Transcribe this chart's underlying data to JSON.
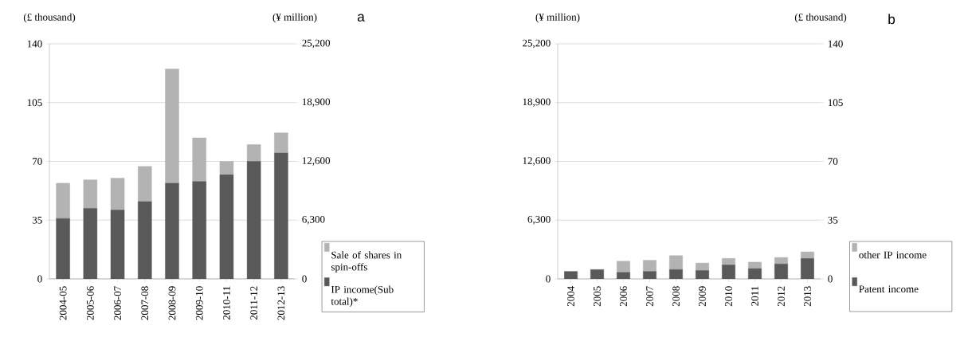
{
  "chart_data": [
    {
      "type": "bar",
      "stacked": true,
      "categories": [
        "2004-05",
        "2005-06",
        "2006-07",
        "2007-08",
        "2008-09",
        "2009-10",
        "2010-11",
        "2011-12",
        "2012-13"
      ],
      "series": [
        {
          "name": "IP income(Sub total)*",
          "color": "#595959",
          "values": [
            36,
            42,
            41,
            46,
            57,
            58,
            62,
            70,
            75
          ]
        },
        {
          "name": "Sale of shares in spin-offs",
          "color": "#b3b3b3",
          "values": [
            21,
            17,
            19,
            21,
            68,
            26,
            8,
            10,
            12
          ]
        }
      ],
      "ylabel": "(£ thousand)",
      "y2label": "(¥ million)",
      "ylim": [
        0,
        140
      ],
      "yticks": [
        0,
        35,
        70,
        105,
        140
      ],
      "y2lim": [
        0,
        25200
      ],
      "y2ticks": [
        0,
        {
          "value": 6300,
          "label": "6,300"
        },
        {
          "value": 12600,
          "label": "12,600"
        },
        {
          "value": 18900,
          "label": "18,900"
        },
        {
          "value": 25200,
          "label": "25,200"
        }
      ],
      "grid": "y",
      "legend": "right",
      "annotations": [
        "a"
      ]
    },
    {
      "type": "bar",
      "stacked": true,
      "categories": [
        "2004",
        "2005",
        "2006",
        "2007",
        "2008",
        "2009",
        "2010",
        "2011",
        "2012",
        "2013"
      ],
      "series": [
        {
          "name": "Patent income",
          "color": "#595959",
          "values": [
            800,
            1000,
            700,
            800,
            1000,
            900,
            1500,
            1100,
            1600,
            2200
          ]
        },
        {
          "name": "other IP income",
          "color": "#b3b3b3",
          "values": [
            0,
            0,
            1200,
            1200,
            1500,
            800,
            700,
            700,
            700,
            700
          ]
        }
      ],
      "ylabel": "(¥ million)",
      "y2label": "(£ thousand)",
      "ylim": [
        0,
        25200
      ],
      "yticks": [
        0,
        {
          "value": 6300,
          "label": "6,300"
        },
        {
          "value": 12600,
          "label": "12,600"
        },
        {
          "value": 18900,
          "label": "18,900"
        },
        {
          "value": 25200,
          "label": "25,200"
        }
      ],
      "y2lim": [
        0,
        140
      ],
      "y2ticks": [
        0,
        35,
        70,
        105,
        140
      ],
      "grid": "y",
      "legend": "right",
      "annotations": [
        "b"
      ]
    }
  ]
}
